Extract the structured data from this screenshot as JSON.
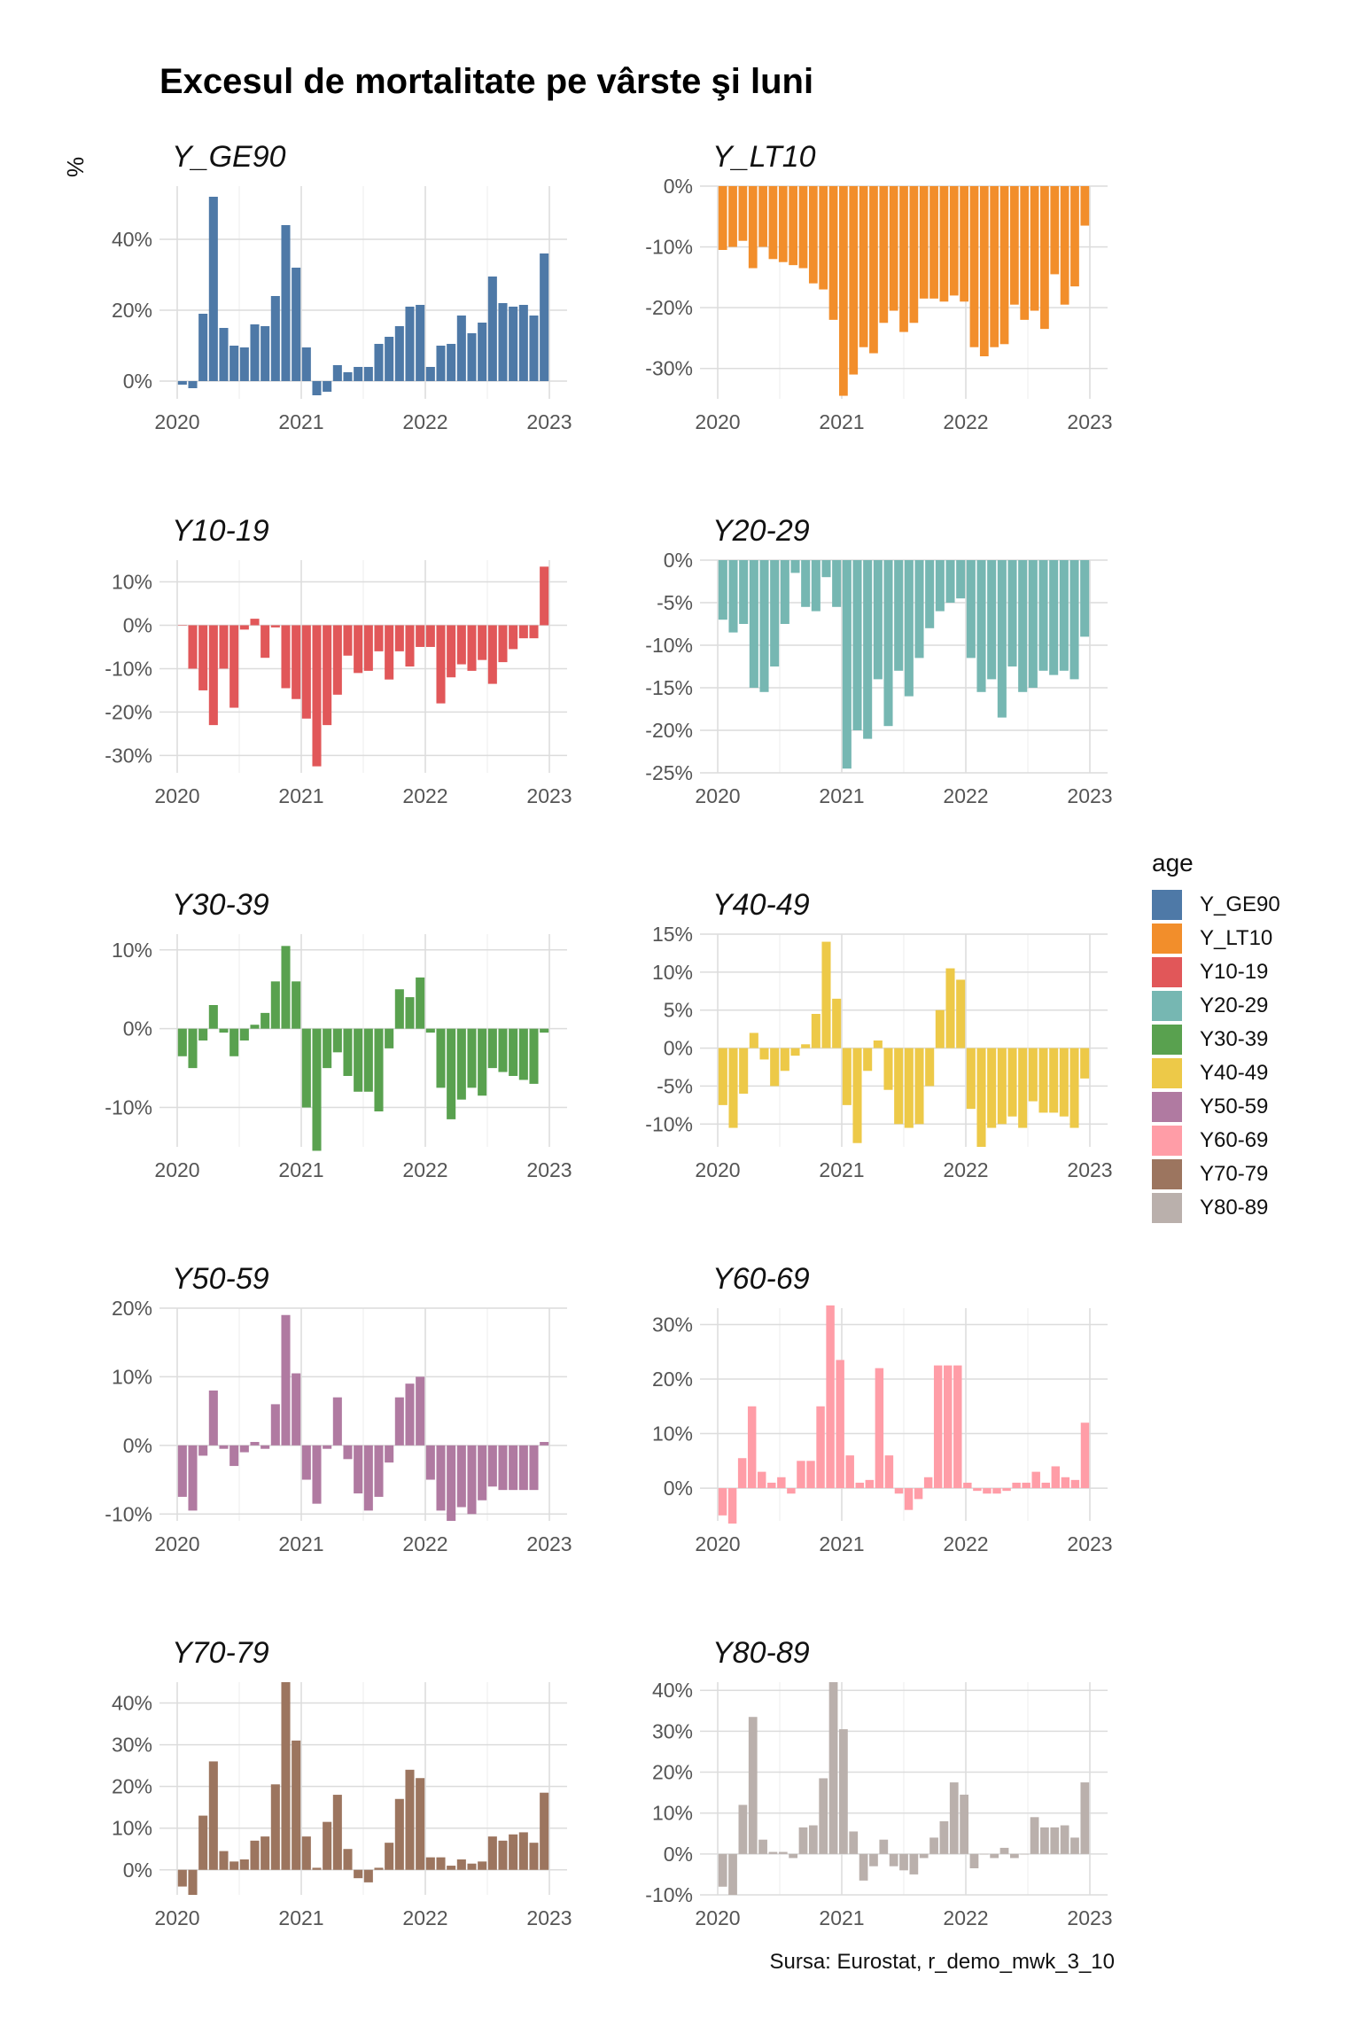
{
  "title": "Excesul de mortalitate pe vârste şi luni",
  "y_unit": "%",
  "legend_title": "age",
  "source": "Sursa: Eurostat, r_demo_mwk_3_10",
  "x_ticks": [
    "2020",
    "2021",
    "2022",
    "2023"
  ],
  "chart_data": [
    {
      "type": "bar",
      "title": "Y_GE90",
      "color": "#4E79A7",
      "ylim": [
        -5,
        55
      ],
      "yticks": [
        0,
        20,
        40
      ],
      "values": [
        -1,
        -2,
        19,
        52,
        15,
        10,
        9.5,
        16,
        15.5,
        24,
        44,
        32,
        9.5,
        -4,
        -3,
        4.5,
        2.5,
        4,
        4,
        10.5,
        12.5,
        15.5,
        21,
        21.5,
        4,
        10,
        10.5,
        18.5,
        13.5,
        16.5,
        29.5,
        22,
        21,
        21.5,
        18.5,
        36
      ]
    },
    {
      "type": "bar",
      "title": "Y_LT10",
      "color": "#F28E2B",
      "ylim": [
        -35,
        0
      ],
      "yticks": [
        -30,
        -20,
        -10,
        0
      ],
      "values": [
        -10.5,
        -10,
        -9,
        -13.5,
        -10,
        -12,
        -12.5,
        -13,
        -13.5,
        -16,
        -17,
        -22,
        -34.5,
        -31,
        -26.5,
        -27.5,
        -22.5,
        -20.5,
        -24,
        -22.5,
        -18.5,
        -18.5,
        -19,
        -18,
        -19,
        -26.5,
        -28,
        -26.5,
        -26,
        -19.5,
        -22,
        -20.5,
        -23.5,
        -14.5,
        -19.5,
        -16.5,
        -6.5
      ]
    },
    {
      "type": "bar",
      "title": "Y10-19",
      "color": "#E15759",
      "ylim": [
        -34,
        15
      ],
      "yticks": [
        -30,
        -20,
        -10,
        0,
        10
      ],
      "values": [
        0,
        -10,
        -15,
        -23,
        -10,
        -19,
        -1,
        1.5,
        -7.5,
        -0.5,
        -14.5,
        -17,
        -21.5,
        -32.5,
        -23,
        -16,
        -7,
        -11,
        -10.5,
        -6,
        -12.5,
        -6,
        -9.5,
        -5,
        -5,
        -18,
        -12,
        -9,
        -10.5,
        -8,
        -13.5,
        -8.5,
        -5.5,
        -3,
        -3,
        13.5
      ]
    },
    {
      "type": "bar",
      "title": "Y20-29",
      "color": "#76B7B2",
      "ylim": [
        -25,
        0
      ],
      "yticks": [
        -25,
        -20,
        -15,
        -10,
        -5,
        0
      ],
      "values": [
        -7,
        -8.5,
        -7.5,
        -15,
        -15.5,
        -12.5,
        -7.5,
        -1.5,
        -5.5,
        -6,
        -2,
        -5.5,
        -24.5,
        -20,
        -21,
        -14,
        -19.5,
        -13,
        -16,
        -11.5,
        -8,
        -6,
        -5,
        -4.5,
        -11.5,
        -15.5,
        -14,
        -18.5,
        -12.5,
        -15.5,
        -15,
        -13,
        -13.5,
        -13,
        -14,
        -9
      ]
    },
    {
      "type": "bar",
      "title": "Y30-39",
      "color": "#59A14F",
      "ylim": [
        -15,
        12
      ],
      "yticks": [
        -10,
        0,
        10
      ],
      "values": [
        -3.5,
        -5,
        -1.5,
        3,
        -0.5,
        -3.5,
        -1.5,
        0.5,
        2,
        6,
        10.5,
        6,
        -10,
        -15.5,
        -5,
        -3,
        -6,
        -8,
        -8,
        -10.5,
        -2.5,
        5,
        4,
        6.5,
        -0.5,
        -7.5,
        -11.5,
        -9,
        -7.5,
        -8.5,
        -5,
        -5.5,
        -6,
        -6.5,
        -7,
        -0.5
      ]
    },
    {
      "type": "bar",
      "title": "Y40-49",
      "color": "#EDC948",
      "ylim": [
        -13,
        15
      ],
      "yticks": [
        -10,
        -5,
        0,
        5,
        10,
        15
      ],
      "values": [
        -7.5,
        -10.5,
        -6,
        2,
        -1.5,
        -5,
        -3,
        -1,
        0.5,
        4.5,
        14,
        6.5,
        -7.5,
        -12.5,
        -3,
        1,
        -5.5,
        -10,
        -10.5,
        -10,
        -5,
        5,
        10.5,
        9,
        -8,
        -13,
        -10.5,
        -10,
        -9,
        -10.5,
        -7,
        -8.5,
        -8.5,
        -9,
        -10.5,
        -4
      ]
    },
    {
      "type": "bar",
      "title": "Y50-59",
      "color": "#B07AA1",
      "ylim": [
        -11,
        20
      ],
      "yticks": [
        -10,
        0,
        10,
        20
      ],
      "values": [
        -7.5,
        -9.5,
        -1.5,
        8,
        -0.5,
        -3,
        -1,
        0.5,
        -0.5,
        6,
        19,
        10.5,
        -5,
        -8.5,
        -0.5,
        7,
        -2,
        -7,
        -9.5,
        -7.5,
        -2.5,
        7,
        9,
        10,
        -5,
        -9.5,
        -11,
        -9,
        -10,
        -8,
        -6,
        -6.5,
        -6.5,
        -6.5,
        -6.5,
        0.5
      ]
    },
    {
      "type": "bar",
      "title": "Y60-69",
      "color": "#FF9DA7",
      "ylim": [
        -6,
        33
      ],
      "yticks": [
        0,
        10,
        20,
        30
      ],
      "values": [
        -5,
        -6.5,
        5.5,
        15,
        3,
        1,
        2,
        -1,
        5,
        5,
        15,
        33.5,
        23.5,
        6,
        1,
        1.5,
        22,
        6,
        -1,
        -4,
        -2,
        2,
        22.5,
        22.5,
        22.5,
        1,
        -0.5,
        -1,
        -1,
        -0.5,
        1,
        1,
        3,
        1,
        4,
        2,
        1.5,
        12
      ]
    },
    {
      "type": "bar",
      "title": "Y70-79",
      "color": "#9C755F",
      "ylim": [
        -6,
        45
      ],
      "yticks": [
        0,
        10,
        20,
        30,
        40
      ],
      "values": [
        -4,
        -6,
        13,
        26,
        4.5,
        2,
        2.5,
        7,
        8,
        20.5,
        45,
        31,
        8,
        0.5,
        11.5,
        18,
        5,
        -2,
        -3,
        0.5,
        6.5,
        17,
        24,
        22,
        3,
        3,
        1,
        2.5,
        1.5,
        2,
        8,
        7,
        8.5,
        9,
        6.5,
        18.5
      ]
    },
    {
      "type": "bar",
      "title": "Y80-89",
      "color": "#BAB0AC",
      "ylim": [
        -10,
        42
      ],
      "yticks": [
        -10,
        0,
        10,
        20,
        30,
        40
      ],
      "values": [
        -8,
        -10,
        12,
        33.5,
        3.5,
        0.5,
        0.5,
        -1,
        6.5,
        7,
        18.5,
        42,
        30.5,
        5.5,
        -6.5,
        -3,
        3.5,
        -3,
        -4,
        -5,
        -1,
        4,
        8,
        17.5,
        14.5,
        -3.5,
        0,
        -1,
        1.5,
        -1,
        0,
        9,
        6.5,
        6.5,
        7,
        4,
        17.5
      ]
    }
  ]
}
